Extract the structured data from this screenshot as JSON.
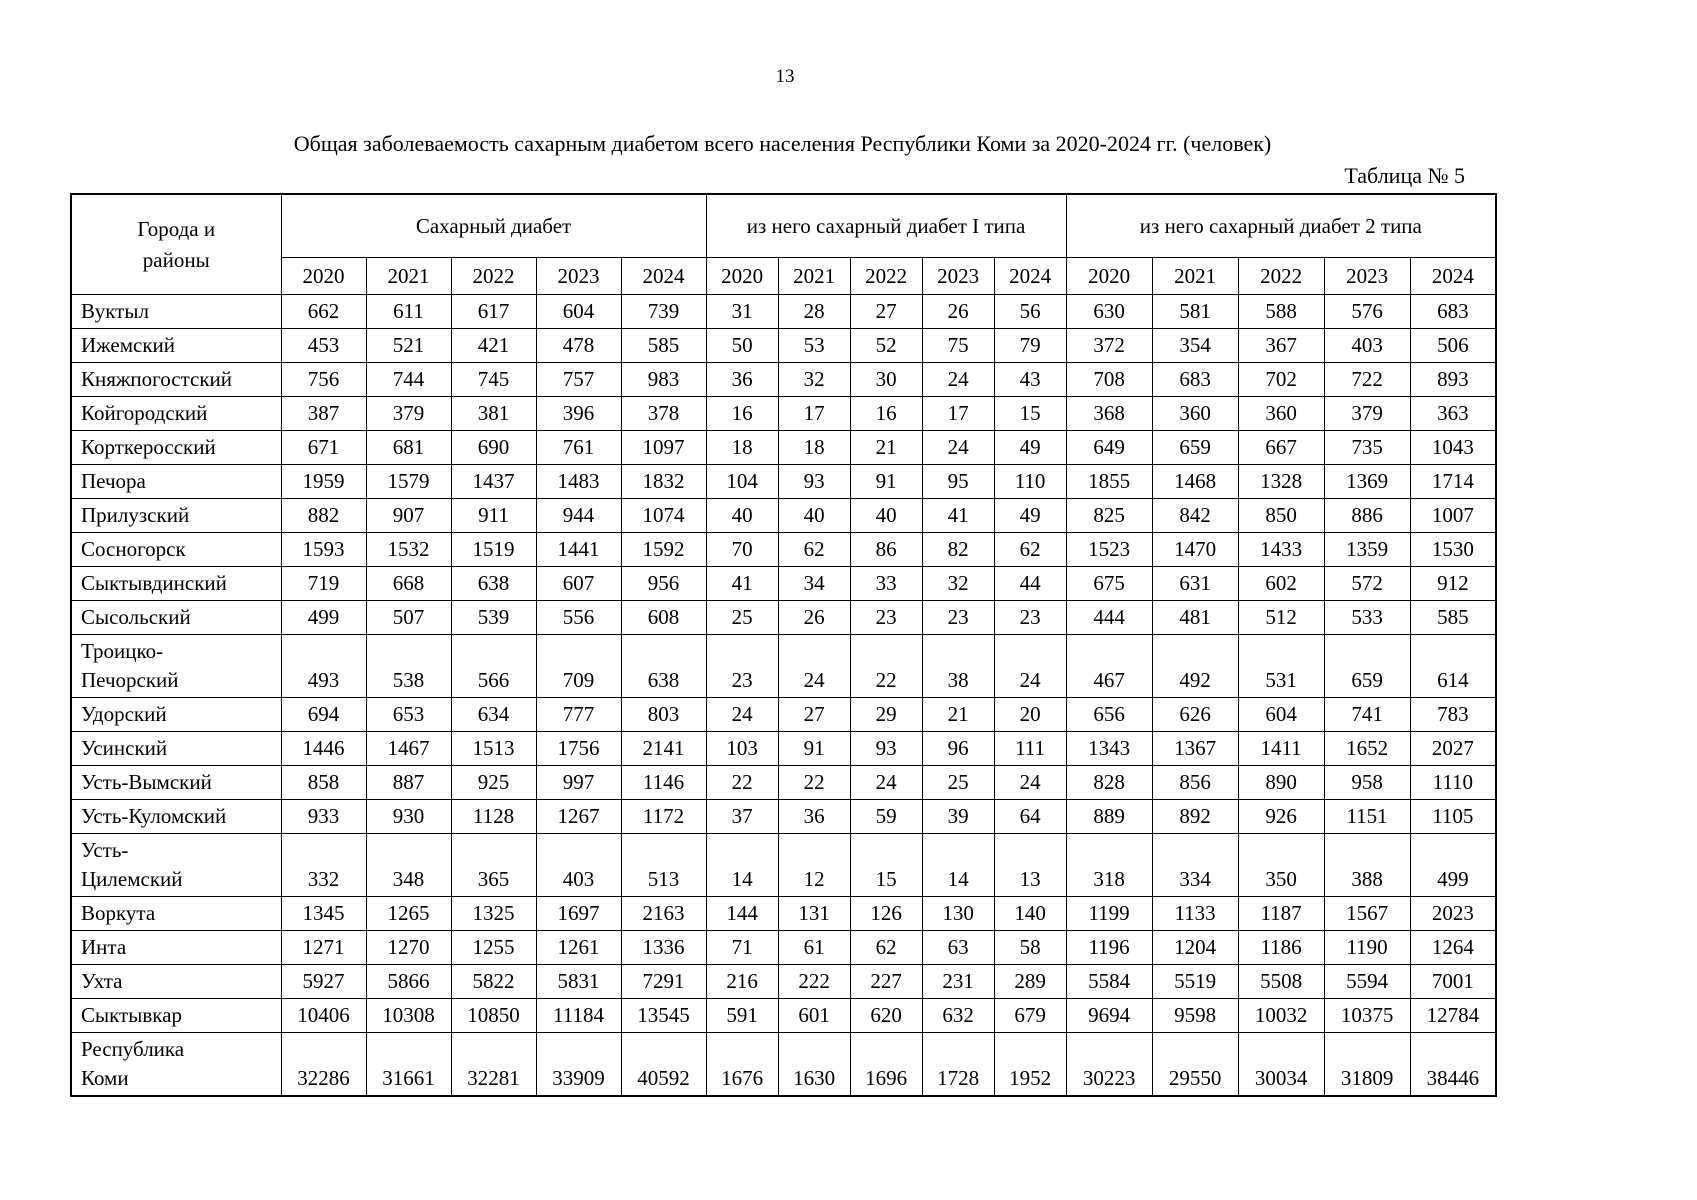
{
  "page": {
    "number": "13",
    "title": "Общая заболеваемость сахарным диабетом всего населения Республики Коми за 2020-2024 гг. (человек)",
    "table_label": "Таблица № 5"
  },
  "table": {
    "corner_header": "Города и районы",
    "groups": [
      "Сахарный диабет",
      "из него сахарный диабет I типа",
      "из него сахарный диабет 2 типа"
    ],
    "years": [
      "2020",
      "2021",
      "2022",
      "2023",
      "2024"
    ],
    "rows": [
      {
        "name": "Вуктыл",
        "total": [
          "662",
          "611",
          "617",
          "604",
          "739"
        ],
        "type1": [
          "31",
          "28",
          "27",
          "26",
          "56"
        ],
        "type2": [
          "630",
          "581",
          "588",
          "576",
          "683"
        ]
      },
      {
        "name": "Ижемский",
        "total": [
          "453",
          "521",
          "421",
          "478",
          "585"
        ],
        "type1": [
          "50",
          "53",
          "52",
          "75",
          "79"
        ],
        "type2": [
          "372",
          "354",
          "367",
          "403",
          "506"
        ]
      },
      {
        "name": "Княжпогостский",
        "total": [
          "756",
          "744",
          "745",
          "757",
          "983"
        ],
        "type1": [
          "36",
          "32",
          "30",
          "24",
          "43"
        ],
        "type2": [
          "708",
          "683",
          "702",
          "722",
          "893"
        ]
      },
      {
        "name": "Койгородский",
        "total": [
          "387",
          "379",
          "381",
          "396",
          "378"
        ],
        "type1": [
          "16",
          "17",
          "16",
          "17",
          "15"
        ],
        "type2": [
          "368",
          "360",
          "360",
          "379",
          "363"
        ]
      },
      {
        "name": "Корткеросский",
        "total": [
          "671",
          "681",
          "690",
          "761",
          "1097"
        ],
        "type1": [
          "18",
          "18",
          "21",
          "24",
          "49"
        ],
        "type2": [
          "649",
          "659",
          "667",
          "735",
          "1043"
        ]
      },
      {
        "name": "Печора",
        "total": [
          "1959",
          "1579",
          "1437",
          "1483",
          "1832"
        ],
        "type1": [
          "104",
          "93",
          "91",
          "95",
          "110"
        ],
        "type2": [
          "1855",
          "1468",
          "1328",
          "1369",
          "1714"
        ]
      },
      {
        "name": "Прилузский",
        "total": [
          "882",
          "907",
          "911",
          "944",
          "1074"
        ],
        "type1": [
          "40",
          "40",
          "40",
          "41",
          "49"
        ],
        "type2": [
          "825",
          "842",
          "850",
          "886",
          "1007"
        ]
      },
      {
        "name": "Сосногорск",
        "total": [
          "1593",
          "1532",
          "1519",
          "1441",
          "1592"
        ],
        "type1": [
          "70",
          "62",
          "86",
          "82",
          "62"
        ],
        "type2": [
          "1523",
          "1470",
          "1433",
          "1359",
          "1530"
        ]
      },
      {
        "name": "Сыктывдинский",
        "total": [
          "719",
          "668",
          "638",
          "607",
          "956"
        ],
        "type1": [
          "41",
          "34",
          "33",
          "32",
          "44"
        ],
        "type2": [
          "675",
          "631",
          "602",
          "572",
          "912"
        ]
      },
      {
        "name": "Сысольский",
        "total": [
          "499",
          "507",
          "539",
          "556",
          "608"
        ],
        "type1": [
          "25",
          "26",
          "23",
          "23",
          "23"
        ],
        "type2": [
          "444",
          "481",
          "512",
          "533",
          "585"
        ]
      },
      {
        "name": "Троицко-\nПечорский",
        "total": [
          "493",
          "538",
          "566",
          "709",
          "638"
        ],
        "type1": [
          "23",
          "24",
          "22",
          "38",
          "24"
        ],
        "type2": [
          "467",
          "492",
          "531",
          "659",
          "614"
        ]
      },
      {
        "name": "Удорский",
        "total": [
          "694",
          "653",
          "634",
          "777",
          "803"
        ],
        "type1": [
          "24",
          "27",
          "29",
          "21",
          "20"
        ],
        "type2": [
          "656",
          "626",
          "604",
          "741",
          "783"
        ]
      },
      {
        "name": "Усинский",
        "total": [
          "1446",
          "1467",
          "1513",
          "1756",
          "2141"
        ],
        "type1": [
          "103",
          "91",
          "93",
          "96",
          "111"
        ],
        "type2": [
          "1343",
          "1367",
          "1411",
          "1652",
          "2027"
        ]
      },
      {
        "name": "Усть-Вымский",
        "total": [
          "858",
          "887",
          "925",
          "997",
          "1146"
        ],
        "type1": [
          "22",
          "22",
          "24",
          "25",
          "24"
        ],
        "type2": [
          "828",
          "856",
          "890",
          "958",
          "1110"
        ]
      },
      {
        "name": "Усть-Куломский",
        "total": [
          "933",
          "930",
          "1128",
          "1267",
          "1172"
        ],
        "type1": [
          "37",
          "36",
          "59",
          "39",
          "64"
        ],
        "type2": [
          "889",
          "892",
          "926",
          "1151",
          "1105"
        ]
      },
      {
        "name": "Усть-\nЦилемский",
        "total": [
          "332",
          "348",
          "365",
          "403",
          "513"
        ],
        "type1": [
          "14",
          "12",
          "15",
          "14",
          "13"
        ],
        "type2": [
          "318",
          "334",
          "350",
          "388",
          "499"
        ]
      },
      {
        "name": "Воркута",
        "total": [
          "1345",
          "1265",
          "1325",
          "1697",
          "2163"
        ],
        "type1": [
          "144",
          "131",
          "126",
          "130",
          "140"
        ],
        "type2": [
          "1199",
          "1133",
          "1187",
          "1567",
          "2023"
        ]
      },
      {
        "name": "Инта",
        "total": [
          "1271",
          "1270",
          "1255",
          "1261",
          "1336"
        ],
        "type1": [
          "71",
          "61",
          "62",
          "63",
          "58"
        ],
        "type2": [
          "1196",
          "1204",
          "1186",
          "1190",
          "1264"
        ]
      },
      {
        "name": "Ухта",
        "total": [
          "5927",
          "5866",
          "5822",
          "5831",
          "7291"
        ],
        "type1": [
          "216",
          "222",
          "227",
          "231",
          "289"
        ],
        "type2": [
          "5584",
          "5519",
          "5508",
          "5594",
          "7001"
        ]
      },
      {
        "name": "Сыктывкар",
        "total": [
          "10406",
          "10308",
          "10850",
          "11184",
          "13545"
        ],
        "type1": [
          "591",
          "601",
          "620",
          "632",
          "679"
        ],
        "type2": [
          "9694",
          "9598",
          "10032",
          "10375",
          "12784"
        ]
      },
      {
        "name": "Республика\nКоми",
        "total": [
          "32286",
          "31661",
          "32281",
          "33909",
          "40592"
        ],
        "type1": [
          "1676",
          "1630",
          "1696",
          "1728",
          "1952"
        ],
        "type2": [
          "30223",
          "29550",
          "30034",
          "31809",
          "38446"
        ]
      }
    ]
  }
}
